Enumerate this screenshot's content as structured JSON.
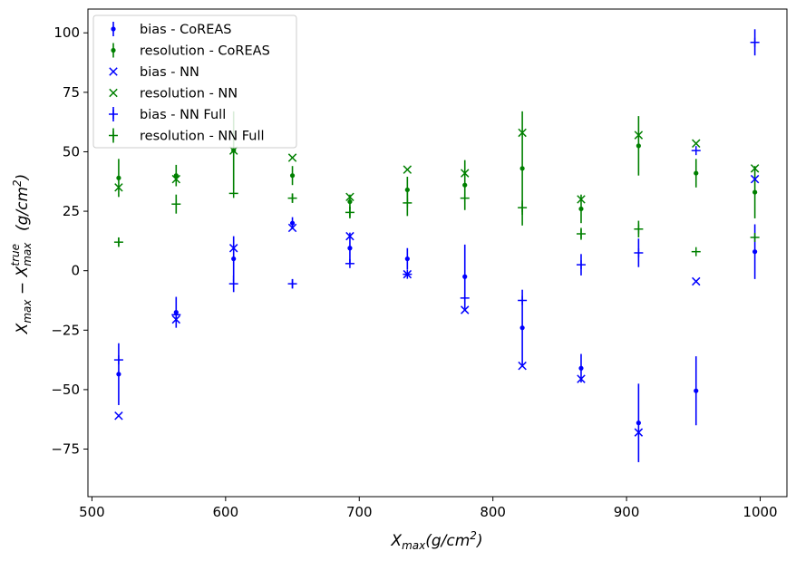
{
  "chart_data": {
    "type": "scatter",
    "title": "",
    "xlabel": {
      "base": "X",
      "sub": "max",
      "rest": "(g/cm",
      "sup": "2",
      "close": ")"
    },
    "ylabel": {
      "base1": "X",
      "sub1": "max",
      "minus": " − ",
      "base2": "X",
      "sub2": "max",
      "sup2": "true",
      "unit": "(g/cm",
      "unit_sup": "2",
      "unit_close": ")"
    },
    "xlim": [
      497,
      1020
    ],
    "ylim": [
      -95,
      110
    ],
    "xticks": [
      500,
      600,
      700,
      800,
      900,
      1000
    ],
    "yticks": [
      -75,
      -50,
      -25,
      0,
      25,
      50,
      75,
      100
    ],
    "grid": false,
    "legend_position": "top-left",
    "x": [
      520,
      563,
      606,
      650,
      693,
      736,
      779,
      822,
      866,
      909,
      952,
      996
    ],
    "series": [
      {
        "name": "bias - CoREAS",
        "color": "#0000ff",
        "marker": "dot",
        "values": [
          -43.5,
          -17.5,
          5,
          20,
          9.5,
          5,
          -2.5,
          -24,
          -41,
          -64,
          -50.5,
          8
        ],
        "errors": [
          13,
          6.5,
          9.5,
          2.5,
          6.5,
          4.5,
          13.5,
          16,
          6,
          16.5,
          14.5,
          11.5
        ]
      },
      {
        "name": "resolution - CoREAS",
        "color": "#008000",
        "marker": "dot",
        "values": [
          39,
          40,
          50.5,
          40,
          29,
          34,
          36,
          43,
          26,
          52.5,
          41,
          33
        ],
        "errors": [
          8,
          4.5,
          16.5,
          4,
          3,
          5.5,
          10.5,
          24,
          6,
          12.5,
          6,
          11
        ]
      },
      {
        "name": "bias - NN",
        "color": "#0000ff",
        "marker": "x",
        "values": [
          -61,
          -20.5,
          9.5,
          18,
          14.5,
          -1.5,
          -16.5,
          -40,
          -45.5,
          -68,
          -4.5,
          38.5
        ],
        "errors": []
      },
      {
        "name": "resolution - NN",
        "color": "#008000",
        "marker": "x",
        "values": [
          35,
          38.5,
          50.5,
          47.5,
          31,
          42.5,
          41,
          58,
          30,
          57,
          53.5,
          43
        ],
        "errors": []
      },
      {
        "name": "bias - NN Full",
        "color": "#0000ff",
        "marker": "plus",
        "values": [
          -37.5,
          -18.5,
          -5.5,
          -5.5,
          3,
          -1.5,
          -11.5,
          -12.5,
          2.5,
          7.5,
          50.5,
          96
        ],
        "errors": [
          0,
          0,
          3.5,
          2,
          0,
          0,
          0,
          0,
          4.5,
          6,
          0,
          5.5
        ]
      },
      {
        "name": "resolution - NN Full",
        "color": "#008000",
        "marker": "plus",
        "values": [
          12,
          28,
          32.5,
          30.5,
          24.5,
          28.5,
          30.5,
          26.5,
          15.5,
          17.5,
          8,
          14
        ],
        "errors": [
          2,
          4,
          0,
          2,
          2.5,
          5.5,
          0,
          3,
          2.5,
          3.5,
          0,
          0
        ]
      }
    ]
  }
}
